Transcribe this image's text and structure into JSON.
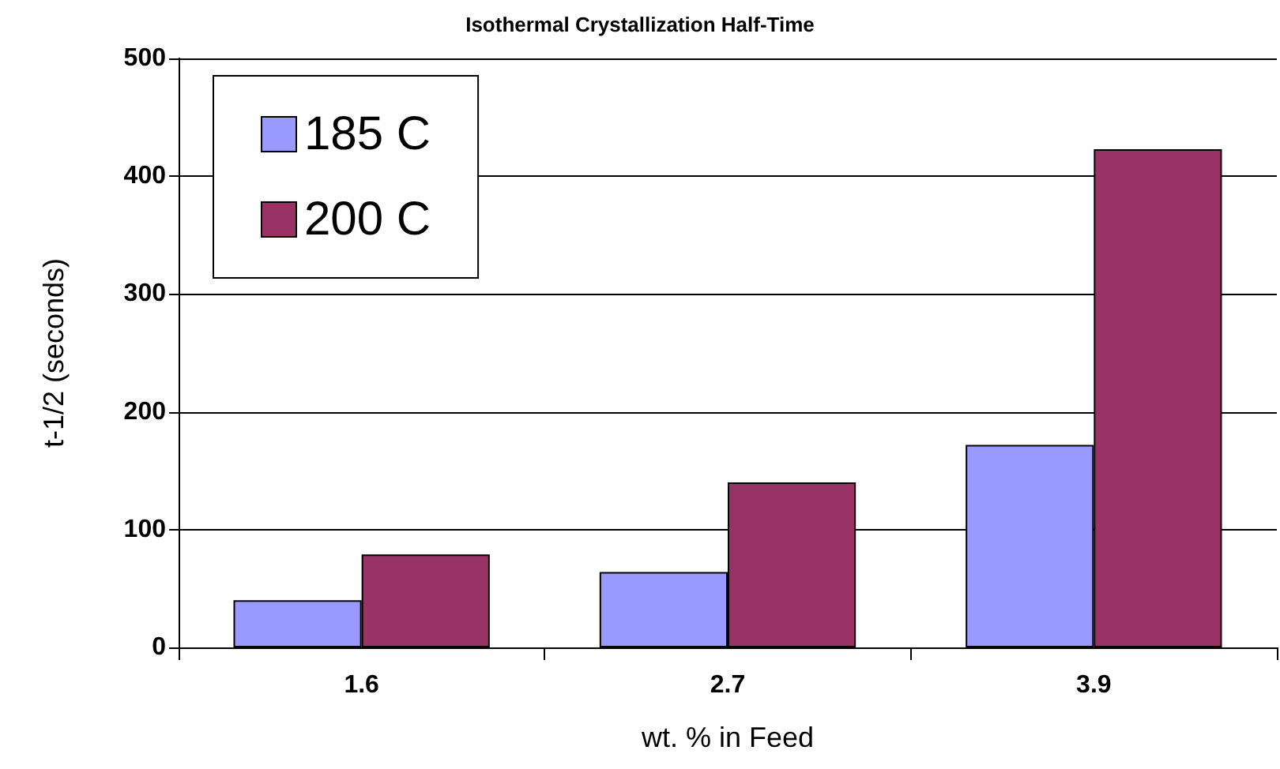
{
  "chart_data": {
    "type": "bar",
    "title": "Isothermal Crystallization Half-Time",
    "xlabel": "wt. % in Feed",
    "ylabel": "t-1/2 (seconds)",
    "categories": [
      "1.6",
      "2.7",
      "3.9"
    ],
    "series": [
      {
        "name": "185 C",
        "color": "#9999ff",
        "values": [
          40,
          64,
          172
        ]
      },
      {
        "name": "200 C",
        "color": "#993366",
        "values": [
          79,
          140,
          423
        ]
      }
    ],
    "ylim": [
      0,
      500
    ],
    "yticks": [
      0,
      100,
      200,
      300,
      400,
      500
    ],
    "grid": "y",
    "legend": "top left"
  }
}
